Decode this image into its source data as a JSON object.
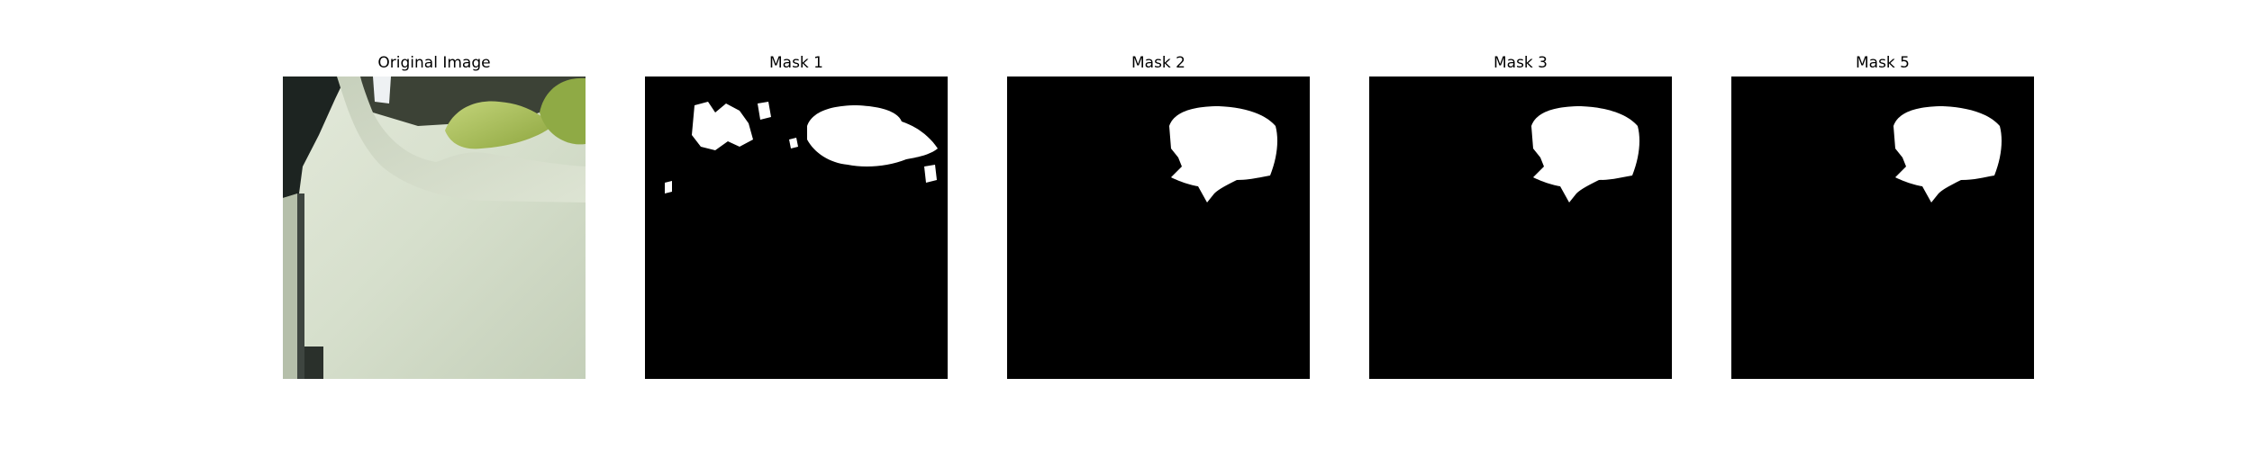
{
  "figure": {
    "panels": [
      {
        "title": "Original Image"
      },
      {
        "title": "Mask 1"
      },
      {
        "title": "Mask 2"
      },
      {
        "title": "Mask 3"
      },
      {
        "title": "Mask 5"
      }
    ]
  },
  "colors": {
    "background": "#ffffff",
    "mask_background": "#000000",
    "mask_foreground": "#ffffff",
    "photo_dark_corner": "#1d2421",
    "photo_surface": "#d8e0cd",
    "photo_leaf": "#a9c05a",
    "photo_edge_line": "#3e4540"
  }
}
